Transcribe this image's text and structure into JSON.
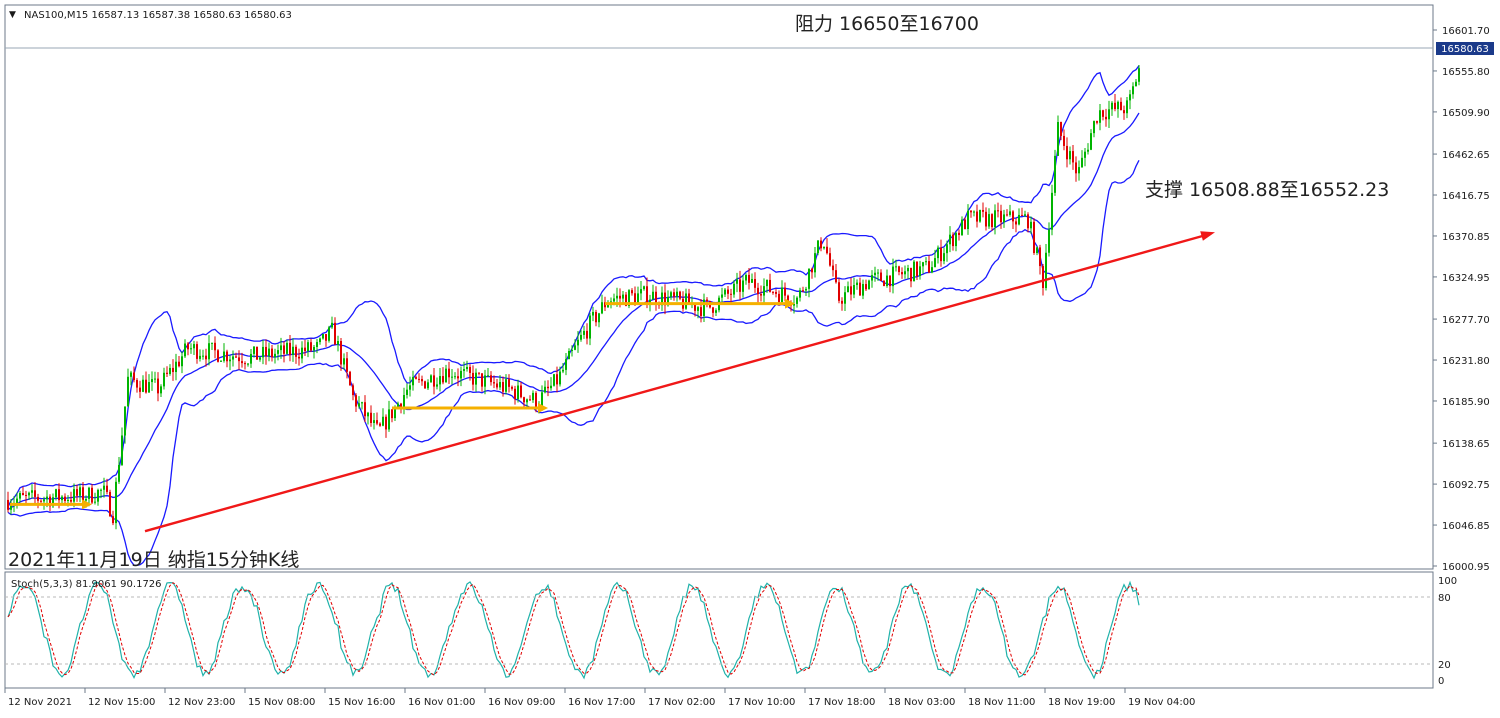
{
  "header": {
    "symbol_line": "NAS100,M15  16587.13 16587.38 16580.63 16580.63"
  },
  "annotations": {
    "resistance": "阻力 16650至16700",
    "support": "支撑 16508.88至16552.23",
    "caption": "2021年11月19日 纳指15分钟K线"
  },
  "indicator": {
    "label": "Stoch(5,3,3) 81.9061 90.1726",
    "levels": [
      "100",
      "80",
      "20",
      "0"
    ]
  },
  "colors": {
    "up_candle": "#00b400",
    "down_candle": "#e00000",
    "bollinger": "#1a1aff",
    "trendline": "#f01818",
    "arrows": "#f5b000",
    "stoch_main": "#20b2aa",
    "stoch_signal": "#e00000",
    "price_tag_bg": "#1b3a8a"
  },
  "chart_data": {
    "type": "candlestick",
    "symbol": "NAS100",
    "timeframe": "M15",
    "current_price": 16580.63,
    "price_tag": "16580.63",
    "ylim": [
      16000.95,
      16601.7
    ],
    "y_ticks": [
      "16601.70",
      "16555.80",
      "16509.90",
      "16462.65",
      "16416.75",
      "16370.85",
      "16324.95",
      "16277.70",
      "16231.80",
      "16185.90",
      "16138.65",
      "16092.75",
      "16046.85",
      "16000.95"
    ],
    "x_ticks": [
      "12 Nov 2021",
      "12 Nov 15:00",
      "12 Nov 23:00",
      "15 Nov 08:00",
      "15 Nov 16:00",
      "16 Nov 01:00",
      "16 Nov 09:00",
      "16 Nov 17:00",
      "17 Nov 02:00",
      "17 Nov 10:00",
      "17 Nov 18:00",
      "18 Nov 03:00",
      "18 Nov 11:00",
      "18 Nov 19:00",
      "19 Nov 04:00"
    ],
    "price_path": [
      {
        "t": 0,
        "p": 16075
      },
      {
        "t": 80,
        "p": 16080
      },
      {
        "t": 95,
        "p": 16085
      },
      {
        "t": 105,
        "p": 16060
      },
      {
        "t": 120,
        "p": 16210
      },
      {
        "t": 150,
        "p": 16200
      },
      {
        "t": 180,
        "p": 16245
      },
      {
        "t": 240,
        "p": 16235
      },
      {
        "t": 310,
        "p": 16245
      },
      {
        "t": 325,
        "p": 16265
      },
      {
        "t": 345,
        "p": 16190
      },
      {
        "t": 370,
        "p": 16150
      },
      {
        "t": 400,
        "p": 16200
      },
      {
        "t": 440,
        "p": 16220
      },
      {
        "t": 500,
        "p": 16200
      },
      {
        "t": 530,
        "p": 16185
      },
      {
        "t": 550,
        "p": 16210
      },
      {
        "t": 575,
        "p": 16260
      },
      {
        "t": 600,
        "p": 16300
      },
      {
        "t": 640,
        "p": 16305
      },
      {
        "t": 700,
        "p": 16290
      },
      {
        "t": 740,
        "p": 16320
      },
      {
        "t": 790,
        "p": 16300
      },
      {
        "t": 815,
        "p": 16370
      },
      {
        "t": 830,
        "p": 16300
      },
      {
        "t": 860,
        "p": 16320
      },
      {
        "t": 920,
        "p": 16335
      },
      {
        "t": 960,
        "p": 16390
      },
      {
        "t": 1020,
        "p": 16390
      },
      {
        "t": 1035,
        "p": 16320
      },
      {
        "t": 1050,
        "p": 16490
      },
      {
        "t": 1070,
        "p": 16440
      },
      {
        "t": 1090,
        "p": 16510
      },
      {
        "t": 1120,
        "p": 16515
      },
      {
        "t": 1140,
        "p": 16595
      }
    ],
    "trendline": {
      "from": {
        "t": 145,
        "p": 16040
      },
      "to": {
        "t": 1215,
        "p": 16375
      }
    },
    "stochastic": {
      "k": 81.9061,
      "d": 90.1726,
      "levels": [
        0,
        20,
        80,
        100
      ]
    }
  }
}
